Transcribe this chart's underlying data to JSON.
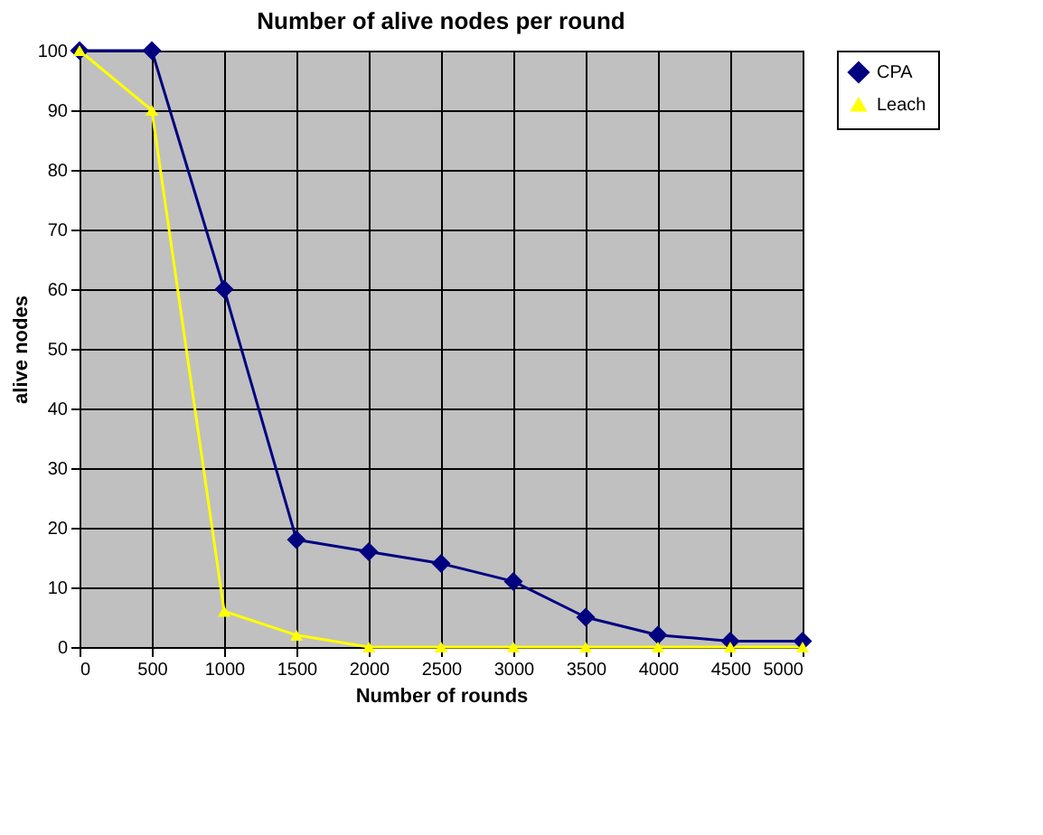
{
  "chart_data": {
    "type": "line",
    "title": "Number of alive nodes per round",
    "xlabel": "Number  of  rounds",
    "ylabel": "alive nodes",
    "x": [
      0,
      500,
      1000,
      1500,
      2000,
      2500,
      3000,
      3500,
      4000,
      4500,
      5000
    ],
    "series": [
      {
        "name": "CPA",
        "color": "#000080",
        "marker": "diamond",
        "values": [
          100,
          100,
          60,
          18,
          16,
          14,
          11,
          5,
          2,
          1,
          1
        ]
      },
      {
        "name": "Leach",
        "color": "#ffff00",
        "marker": "triangle",
        "values": [
          100,
          90,
          6,
          2,
          0,
          0,
          0,
          0,
          0,
          0,
          0
        ]
      }
    ],
    "xlim": [
      0,
      5000
    ],
    "xticks": [
      0,
      500,
      1000,
      1500,
      2000,
      2500,
      3000,
      3500,
      4000,
      4500,
      5000
    ],
    "ylim": [
      0,
      100
    ],
    "yticks": [
      0,
      10,
      20,
      30,
      40,
      50,
      60,
      70,
      80,
      90,
      100
    ],
    "grid": true,
    "legend": "right",
    "line_style": "solid"
  }
}
